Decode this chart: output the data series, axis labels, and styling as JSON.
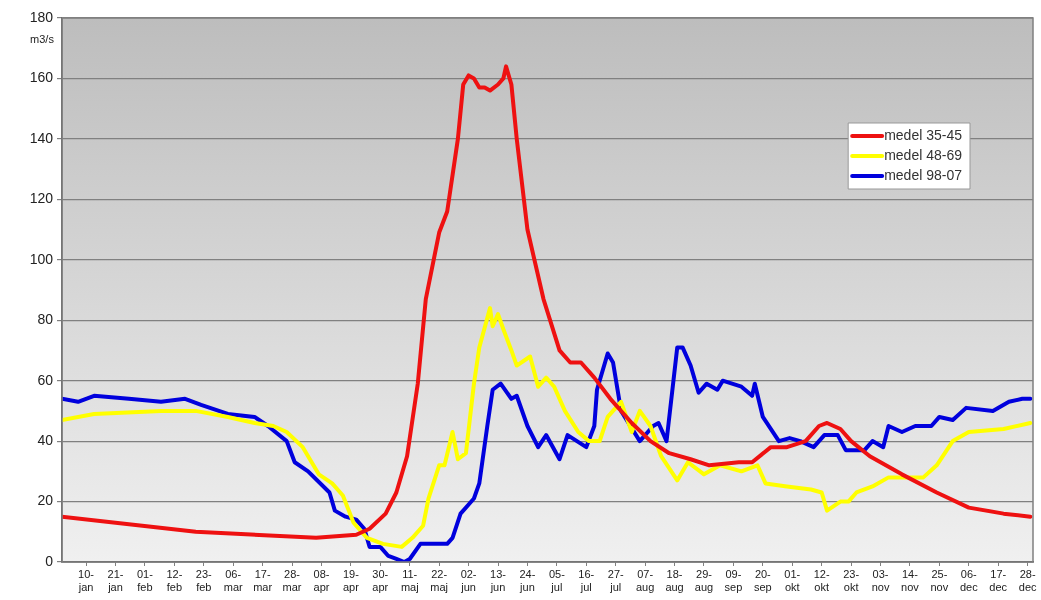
{
  "chart_data": {
    "type": "line",
    "ylabel": "m3/s",
    "xlim": [
      "--01-01",
      "--12-30"
    ],
    "ylim": [
      0,
      180
    ],
    "yticks": [
      0,
      20,
      40,
      60,
      80,
      100,
      120,
      140,
      160,
      180
    ],
    "xticks": [
      {
        "value": "--01-10",
        "label": "10-jan"
      },
      {
        "value": "--01-21",
        "label": "21-jan"
      },
      {
        "value": "--02-01",
        "label": "01-feb"
      },
      {
        "value": "--02-12",
        "label": "12-feb"
      },
      {
        "value": "--02-23",
        "label": "23-feb"
      },
      {
        "value": "--03-06",
        "label": "06-mar"
      },
      {
        "value": "--03-17",
        "label": "17-mar"
      },
      {
        "value": "--03-28",
        "label": "28-mar"
      },
      {
        "value": "--04-08",
        "label": "08-apr"
      },
      {
        "value": "--04-19",
        "label": "19-apr"
      },
      {
        "value": "--04-30",
        "label": "30-apr"
      },
      {
        "value": "--05-11",
        "label": "11-maj"
      },
      {
        "value": "--05-22",
        "label": "22-maj"
      },
      {
        "value": "--06-02",
        "label": "02-jun"
      },
      {
        "value": "--06-13",
        "label": "13-jun"
      },
      {
        "value": "--06-24",
        "label": "24-jun"
      },
      {
        "value": "--07-05",
        "label": "05-jul"
      },
      {
        "value": "--07-16",
        "label": "16-jul"
      },
      {
        "value": "--07-27",
        "label": "27-jul"
      },
      {
        "value": "--08-07",
        "label": "07-aug"
      },
      {
        "value": "--08-18",
        "label": "18-aug"
      },
      {
        "value": "--08-29",
        "label": "29-aug"
      },
      {
        "value": "--09-09",
        "label": "09-sep"
      },
      {
        "value": "--09-20",
        "label": "20-sep"
      },
      {
        "value": "--10-01",
        "label": "01-okt"
      },
      {
        "value": "--10-12",
        "label": "12-okt"
      },
      {
        "value": "--10-23",
        "label": "23-okt"
      },
      {
        "value": "--11-03",
        "label": "03-nov"
      },
      {
        "value": "--11-14",
        "label": "14-nov"
      },
      {
        "value": "--11-25",
        "label": "25-nov"
      },
      {
        "value": "--12-06",
        "label": "06-dec"
      },
      {
        "value": "--12-17",
        "label": "17-dec"
      },
      {
        "value": "--12-28",
        "label": "28-dec"
      }
    ],
    "grid": "y",
    "legend": "top right",
    "marker": "none",
    "line_style": "solid",
    "series": [
      {
        "name": "medel 35-45",
        "color": "#ee1111",
        "x": [
          "--01-01",
          "--02-20",
          "--04-06",
          "--04-21",
          "--04-26",
          "--05-02",
          "--05-06",
          "--05-10",
          "--05-14",
          "--05-17",
          "--05-22",
          "--05-25",
          "--05-29",
          "--05-31",
          "--06-02",
          "--06-04",
          "--06-06",
          "--06-08",
          "--06-10",
          "--06-13",
          "--06-15",
          "--06-16",
          "--06-18",
          "--06-20",
          "--06-24",
          "--06-30",
          "--07-06",
          "--07-10",
          "--07-14",
          "--07-19",
          "--07-25",
          "--08-02",
          "--08-09",
          "--08-16",
          "--08-24",
          "--08-31",
          "--09-11",
          "--09-16",
          "--09-23",
          "--09-29",
          "--10-06",
          "--10-11",
          "--10-14",
          "--10-19",
          "--10-23",
          "--10-30",
          "--11-11",
          "--11-24",
          "--12-06",
          "--12-19",
          "--12-29"
        ],
        "values": [
          15,
          10,
          8,
          9,
          11,
          16,
          23,
          35,
          59,
          87,
          109,
          116,
          140,
          158,
          161,
          160,
          157,
          157,
          156,
          158,
          160,
          164,
          158,
          140,
          110,
          87,
          70,
          66,
          66,
          61,
          54,
          46,
          40,
          36,
          34,
          32,
          33,
          33,
          38,
          38,
          40,
          45,
          46,
          44,
          40,
          35,
          29,
          23,
          18,
          16,
          15
        ]
      },
      {
        "name": "medel 48-69",
        "color": "#ffff00",
        "x": [
          "--01-01",
          "--01-13",
          "--02-07",
          "--02-20",
          "--03-04",
          "--03-14",
          "--03-21",
          "--03-26",
          "--04-01",
          "--04-07",
          "--04-12",
          "--04-16",
          "--04-20",
          "--04-25",
          "--05-01",
          "--05-08",
          "--05-12",
          "--05-16",
          "--05-18",
          "--05-22",
          "--05-24",
          "--05-27",
          "--05-29",
          "--06-01",
          "--06-04",
          "--06-06",
          "--06-10",
          "--06-11",
          "--06-13",
          "--06-15",
          "--06-18",
          "--06-20",
          "--06-25",
          "--06-28",
          "--07-01",
          "--07-04",
          "--07-08",
          "--07-13",
          "--07-17",
          "--07-21",
          "--07-24",
          "--07-29",
          "--08-02",
          "--08-05",
          "--08-09",
          "--08-13",
          "--08-19",
          "--08-23",
          "--08-29",
          "--09-04",
          "--09-12",
          "--09-18",
          "--09-21",
          "--09-29",
          "--10-08",
          "--10-12",
          "--10-14",
          "--10-19",
          "--10-22",
          "--10-25",
          "--10-31",
          "--11-06",
          "--11-19",
          "--11-24",
          "--11-30",
          "--12-06",
          "--12-19",
          "--12-29"
        ],
        "values": [
          47,
          49,
          50,
          50,
          48,
          46,
          45,
          43,
          38,
          29,
          26,
          22,
          13,
          8,
          6,
          5,
          8,
          12,
          21,
          32,
          32,
          43,
          34,
          36,
          59,
          71,
          84,
          78,
          82,
          77,
          70,
          65,
          68,
          58,
          61,
          58,
          50,
          43,
          40,
          40,
          48,
          53,
          43,
          50,
          45,
          35,
          27,
          33,
          29,
          32,
          30,
          32,
          26,
          25,
          24,
          23,
          17,
          20,
          20,
          23,
          25,
          28,
          28,
          32,
          40,
          43,
          44,
          46
        ]
      },
      {
        "name": "medel 98-07",
        "color": "#0000dd",
        "x": [
          "--01-01",
          "--01-07",
          "--01-13",
          "--01-26",
          "--02-07",
          "--02-16",
          "--02-22",
          "--03-04",
          "--03-14",
          "--03-19",
          "--03-26",
          "--03-29",
          "--04-03",
          "--04-11",
          "--04-13",
          "--04-17",
          "--04-21",
          "--04-24",
          "--04-26",
          "--04-30",
          "--05-03",
          "--05-06",
          "--05-09",
          "--05-11",
          "--05-15",
          "--05-20",
          "--05-25",
          "--05-27",
          "--05-30",
          "--06-04",
          "--06-06",
          "--06-09",
          "--06-11",
          "--06-14",
          "--06-18",
          "--06-20",
          "--06-24",
          "--06-28",
          "--07-01",
          "--07-06",
          "--07-09",
          "--07-16",
          "--07-19",
          "--07-20",
          "--07-24",
          "--07-26",
          "--07-29",
          "--08-05",
          "--08-10",
          "--08-12",
          "--08-15",
          "--08-19",
          "--08-21",
          "--08-24",
          "--08-27",
          "--08-30",
          "--09-03",
          "--09-05",
          "--09-12",
          "--09-16",
          "--09-17",
          "--09-20",
          "--09-26",
          "--09-30",
          "--10-04",
          "--10-09",
          "--10-13",
          "--10-18",
          "--10-21",
          "--10-28",
          "--10-31",
          "--11-04",
          "--11-06",
          "--11-11",
          "--11-16",
          "--11-22",
          "--11-25",
          "--11-30",
          "--12-05",
          "--12-15",
          "--12-21",
          "--12-26",
          "--12-29"
        ],
        "values": [
          54,
          53,
          55,
          54,
          53,
          54,
          52,
          49,
          48,
          45,
          40,
          33,
          30,
          23,
          17,
          15,
          14,
          11,
          5,
          5,
          2,
          1,
          0,
          1,
          6,
          6,
          6,
          8,
          16,
          21,
          26,
          45,
          57,
          59,
          54,
          55,
          45,
          38,
          42,
          34,
          42,
          38,
          45,
          57,
          69,
          66,
          50,
          40,
          45,
          46,
          40,
          71,
          71,
          65,
          56,
          59,
          57,
          60,
          58,
          55,
          59,
          48,
          40,
          41,
          40,
          38,
          42,
          42,
          37,
          37,
          40,
          38,
          45,
          43,
          45,
          45,
          48,
          47,
          51,
          50,
          53,
          54,
          54
        ]
      }
    ]
  }
}
